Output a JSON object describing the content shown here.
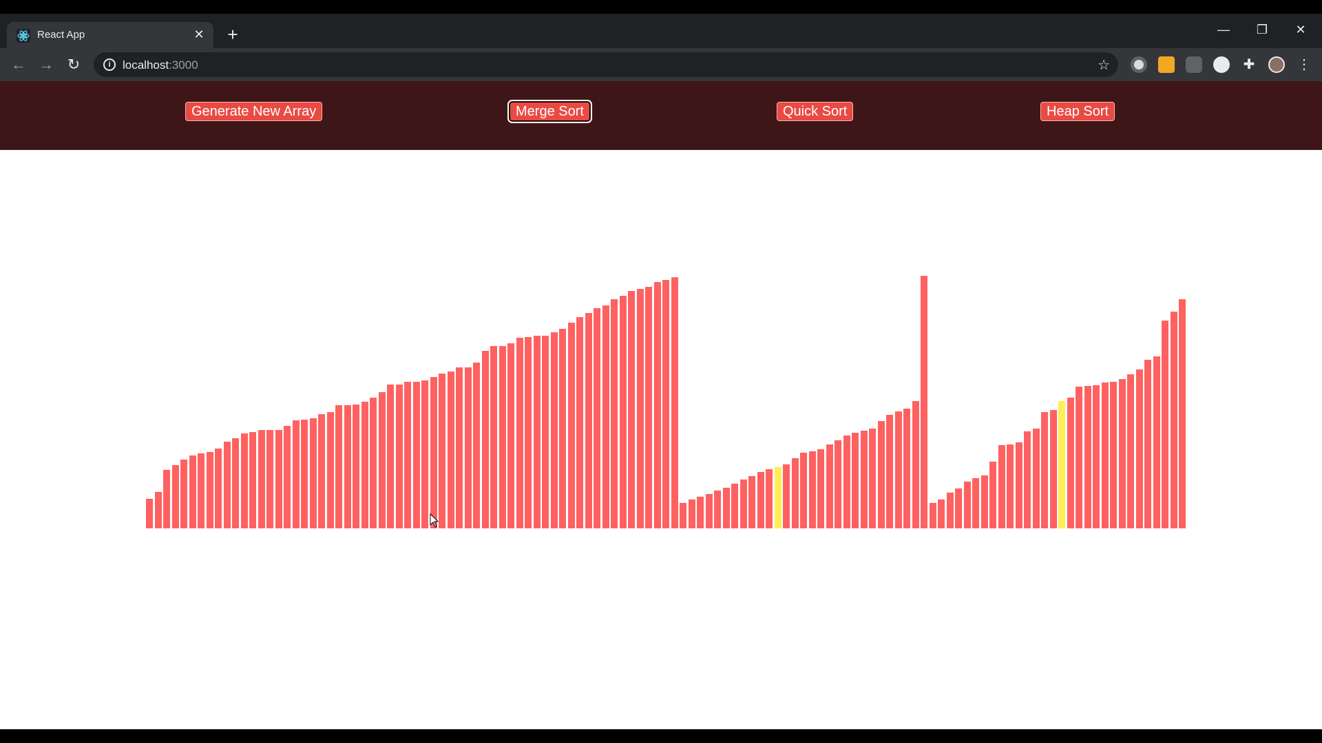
{
  "browser": {
    "tab_title": "React App",
    "close_glyph": "✕",
    "newtab_glyph": "+",
    "url_host": "localhost",
    "url_port": ":3000",
    "info_glyph": "i",
    "star_glyph": "☆",
    "window_controls": {
      "minimize": "—",
      "restore": "❐",
      "close": "✕"
    },
    "nav": {
      "back": "←",
      "forward": "→",
      "reload": "↻"
    }
  },
  "navbar": {
    "buttons": [
      "Generate New Array",
      "Merge Sort",
      "Quick Sort",
      "Heap Sort"
    ],
    "focused_index": 1
  },
  "colors": {
    "bar_primary": "#ff6161",
    "bar_compare": "#ffee55",
    "navbar_bg": "#3f1617",
    "button_bg": "#e94a44"
  },
  "chart_data": {
    "type": "bar",
    "values": [
      45,
      55,
      88,
      95,
      104,
      110,
      113,
      115,
      120,
      130,
      136,
      143,
      145,
      148,
      148,
      148,
      154,
      163,
      164,
      166,
      172,
      175,
      185,
      185,
      186,
      190,
      197,
      205,
      216,
      216,
      221,
      221,
      223,
      228,
      233,
      236,
      242,
      242,
      250,
      267,
      274,
      274,
      279,
      287,
      288,
      290,
      290,
      295,
      300,
      310,
      318,
      324,
      331,
      335,
      345,
      350,
      357,
      360,
      363,
      371,
      374,
      378,
      38,
      43,
      48,
      52,
      57,
      61,
      67,
      73,
      79,
      85,
      89,
      92,
      96,
      106,
      114,
      116,
      119,
      126,
      133,
      140,
      144,
      147,
      150,
      162,
      171,
      176,
      180,
      192,
      380,
      38,
      44,
      54,
      60,
      70,
      76,
      80,
      100,
      125,
      126,
      129,
      146,
      150,
      175,
      178,
      192,
      197,
      213,
      214,
      215,
      220,
      221,
      225,
      232,
      239,
      254,
      259,
      313,
      326,
      345
    ],
    "highlighted": [
      73,
      106
    ],
    "ylim": [
      0,
      380
    ]
  }
}
